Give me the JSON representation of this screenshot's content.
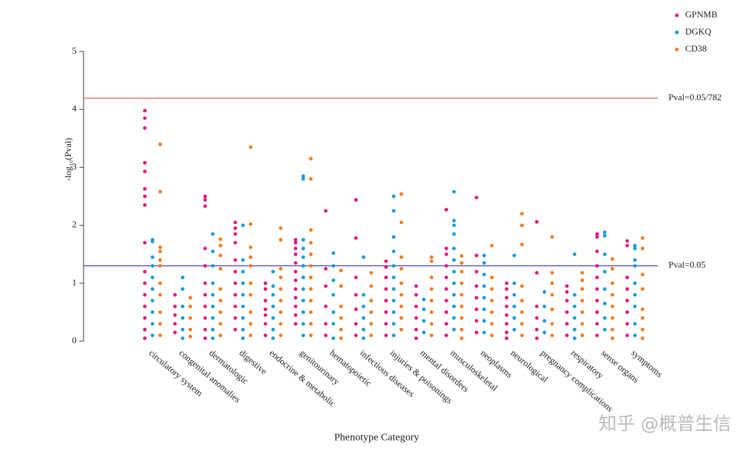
{
  "chart_data": {
    "type": "strip",
    "x_label": "Phenotype Category",
    "y_label": "-log₁₀(Pval)",
    "watermark": "知乎 @概普生信",
    "categories": [
      "circulatory system",
      "congenital anomalies",
      "dermatologic",
      "digestive",
      "endocrine & metabolic",
      "genitourinary",
      "hematopoietic",
      "infectious diseases",
      "injuries & poisonings",
      "mental disorders",
      "musculoskeletal",
      "neoplasms",
      "neurological",
      "pregnancy complications",
      "respiratory",
      "sense organs",
      "symptoms"
    ],
    "ylim": [
      0,
      5
    ],
    "yticks": [
      0,
      1,
      2,
      3,
      4,
      5
    ],
    "hlines": [
      {
        "value": 4.194,
        "label": "Pval=0.05/782",
        "color": "#e8473f"
      },
      {
        "value": 1.301,
        "label": "Pval=0.05",
        "color": "#3a3adf"
      }
    ],
    "legend": "top-right",
    "series": [
      {
        "name": "GPNMB",
        "color": "#e0197d",
        "values": [
          [
            3.98,
            3.85,
            3.68,
            3.08,
            2.93,
            2.63,
            2.5,
            2.35,
            1.7,
            1.2,
            1.0,
            0.8,
            0.6,
            0.4,
            0.2,
            0.05
          ],
          [
            0.8,
            0.6,
            0.45,
            0.3,
            0.15
          ],
          [
            2.5,
            2.44,
            2.33,
            1.6,
            1.3,
            1.0,
            0.8,
            0.6,
            0.4,
            0.2,
            0.05
          ],
          [
            2.05,
            1.95,
            1.85,
            1.7,
            1.4,
            1.2,
            1.0,
            0.8,
            0.6,
            0.4,
            0.2
          ],
          [
            1.0,
            0.9,
            0.7,
            0.55,
            0.45,
            0.3,
            0.1
          ],
          [
            1.75,
            1.7,
            1.6,
            1.5,
            1.35,
            1.2,
            1.05,
            0.9,
            0.75,
            0.6,
            0.45,
            0.3
          ],
          [
            2.25,
            1.25,
            0.95,
            0.6,
            0.3,
            0.1
          ],
          [
            2.44,
            1.78,
            1.1,
            0.8,
            0.55,
            0.3,
            0.1
          ],
          [
            1.38,
            1.28,
            1.1,
            0.9,
            0.7,
            0.5,
            0.3,
            0.1
          ],
          [
            0.95,
            0.8,
            0.6,
            0.4,
            0.2,
            0.05
          ],
          [
            2.27,
            1.6,
            1.5,
            1.3,
            1.1,
            0.9,
            0.7,
            0.5,
            0.3,
            0.1
          ],
          [
            2.48,
            1.48,
            1.2,
            0.95,
            0.75,
            0.55,
            0.35,
            0.15
          ],
          [
            1.0,
            0.9,
            0.75,
            0.6,
            0.45,
            0.3,
            0.15,
            0.05
          ],
          [
            2.06,
            1.18,
            0.6,
            0.4,
            0.2,
            0.05
          ],
          [
            0.95,
            0.85,
            0.7,
            0.5,
            0.3,
            0.1
          ],
          [
            1.85,
            1.8,
            1.55,
            1.3,
            1.1,
            0.9,
            0.7,
            0.5,
            0.3,
            0.1
          ],
          [
            1.73,
            1.65,
            1.1,
            0.9,
            0.7,
            0.5,
            0.3,
            0.1
          ]
        ]
      },
      {
        "name": "DGKQ",
        "color": "#1a9bd7",
        "values": [
          [
            1.75,
            1.72,
            1.45,
            1.3,
            1.1,
            0.9,
            0.7,
            0.5,
            0.3,
            0.1
          ],
          [
            1.1,
            0.9,
            0.6,
            0.4,
            0.2,
            0.05
          ],
          [
            1.85,
            1.55,
            1.3,
            1.0,
            0.8,
            0.6,
            0.4,
            0.2,
            0.05
          ],
          [
            2.0,
            1.4,
            1.2,
            1.0,
            0.8,
            0.6,
            0.4,
            0.2,
            0.05
          ],
          [
            1.2,
            0.95,
            0.8,
            0.6,
            0.4,
            0.2,
            0.05
          ],
          [
            2.85,
            2.8,
            1.75,
            1.6,
            1.45,
            1.3,
            1.1,
            0.9,
            0.7,
            0.5,
            0.3,
            0.1
          ],
          [
            1.52,
            1.3,
            1.05,
            0.8,
            0.5,
            0.3,
            0.05
          ],
          [
            1.45,
            0.8,
            0.6,
            0.4,
            0.2,
            0.05
          ],
          [
            2.5,
            2.25,
            1.8,
            1.55,
            1.3,
            1.1,
            0.9,
            0.7,
            0.5,
            0.3,
            0.1
          ],
          [
            0.72,
            0.55,
            0.35,
            0.15
          ],
          [
            2.58,
            2.08,
            2.0,
            1.85,
            1.6,
            1.4,
            1.2,
            1.0,
            0.8,
            0.6,
            0.4,
            0.2
          ],
          [
            1.48,
            1.35,
            1.15,
            0.95,
            0.75,
            0.55,
            0.35,
            0.15
          ],
          [
            1.48,
            1.0,
            0.8,
            0.6,
            0.4,
            0.2
          ],
          [
            0.85,
            0.6,
            0.35,
            0.15
          ],
          [
            1.5,
            0.8,
            0.6,
            0.4,
            0.2,
            0.05
          ],
          [
            1.88,
            1.82,
            1.5,
            1.2,
            0.9,
            0.65,
            0.4,
            0.2
          ],
          [
            1.65,
            1.6,
            1.4,
            1.3,
            1.0,
            0.8,
            0.6,
            0.3,
            0.1
          ]
        ]
      },
      {
        "name": "CD38",
        "color": "#f07c21",
        "values": [
          [
            3.4,
            2.58,
            1.62,
            1.55,
            1.4,
            1.3,
            1.0,
            0.8,
            0.5,
            0.3,
            0.1
          ],
          [
            0.75,
            0.6,
            0.4,
            0.2,
            0.08
          ],
          [
            1.76,
            1.65,
            1.48,
            1.25,
            0.9,
            0.7,
            0.5,
            0.3,
            0.1
          ],
          [
            3.35,
            2.02,
            1.62,
            1.45,
            1.3,
            1.0,
            0.8,
            0.5,
            0.3,
            0.1
          ],
          [
            1.95,
            1.75,
            1.25,
            1.1,
            0.9,
            0.7,
            0.5,
            0.3,
            0.1
          ],
          [
            3.15,
            2.8,
            1.92,
            1.7,
            1.5,
            1.3,
            1.1,
            0.9,
            0.7,
            0.5,
            0.3,
            0.1
          ],
          [
            1.22,
            0.95,
            0.6,
            0.4,
            0.2,
            0.05
          ],
          [
            1.18,
            0.95,
            0.7,
            0.5,
            0.3,
            0.1
          ],
          [
            2.54,
            2.05,
            1.45,
            1.25,
            1.0,
            0.8,
            0.6,
            0.4,
            0.2
          ],
          [
            1.45,
            1.38,
            1.1,
            0.9,
            0.7,
            0.5,
            0.3,
            0.1
          ],
          [
            1.47,
            1.35,
            1.2,
            1.0,
            0.8,
            0.6,
            0.4,
            0.2,
            0.05
          ],
          [
            1.65,
            1.1,
            0.9,
            0.7,
            0.5,
            0.3,
            0.1
          ],
          [
            2.2,
            2.0,
            1.67,
            0.95,
            0.7,
            0.5,
            0.3,
            0.1
          ],
          [
            1.8,
            1.18,
            1.0,
            0.8,
            0.55,
            0.3,
            0.1
          ],
          [
            1.18,
            1.05,
            0.9,
            0.7,
            0.5,
            0.3,
            0.1
          ],
          [
            1.42,
            1.25,
            1.0,
            0.8,
            0.6,
            0.4,
            0.2,
            0.05
          ],
          [
            1.78,
            1.6,
            1.15,
            0.9,
            0.55,
            0.4,
            0.2,
            0.05
          ]
        ]
      }
    ]
  }
}
